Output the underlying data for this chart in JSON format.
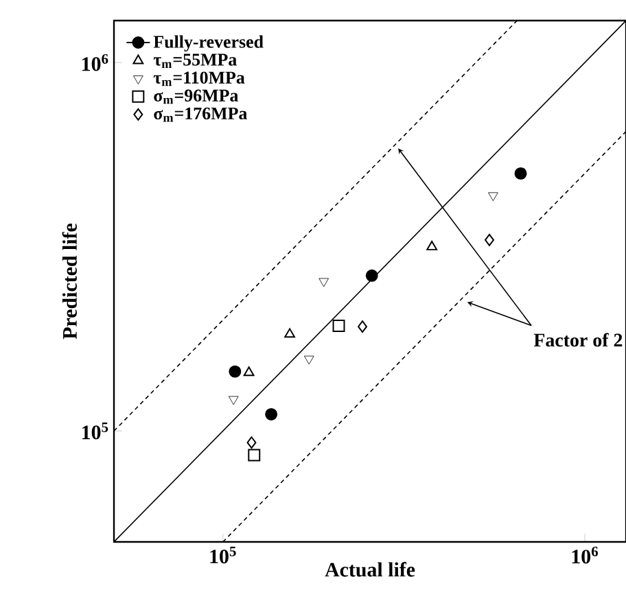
{
  "chart_data": {
    "type": "scatter",
    "xlabel": "Actual life",
    "ylabel": "Predicted life",
    "log": "xy",
    "xlim": [
      50000,
      1300000
    ],
    "ylim": [
      50000,
      1300000
    ],
    "xticks": [
      {
        "value": 100000,
        "label": "10$^{5}$"
      },
      {
        "value": 1000000,
        "label": "10$^{6}$"
      }
    ],
    "yticks": [
      {
        "value": 100000,
        "label": "10$^{5}$"
      },
      {
        "value": 1000000,
        "label": "10$^{6}$"
      }
    ],
    "legend": "top left",
    "grid": false,
    "annotations": [
      "Factor of 2"
    ],
    "series": [
      {
        "name": "Fully-reversed",
        "color": "#000000",
        "marker": "circle",
        "x": [
          108000,
          136000,
          258000,
          665000
        ],
        "values": [
          145000,
          111000,
          264000,
          500000
        ]
      },
      {
        "name": "τ$_{m}$=55MPa",
        "color": "#000000",
        "marker": "triangle",
        "x": [
          118000,
          153000,
          378000
        ],
        "values": [
          144000,
          183000,
          316000
        ]
      },
      {
        "name": "τ$_{m}$=110MPa",
        "color": "#000000",
        "marker": "triangle-down",
        "x": [
          107000,
          173000,
          190000,
          558000
        ],
        "values": [
          122000,
          157000,
          255000,
          436000
        ]
      },
      {
        "name": "σ$_{m}$=96MPa",
        "color": "#000000",
        "marker": "square",
        "x": [
          122000,
          209000
        ],
        "values": [
          86000,
          193000
        ]
      },
      {
        "name": "σ$_{m}$=176MPa",
        "color": "#000000",
        "marker": "diamond",
        "x": [
          120000,
          243000,
          545000
        ],
        "values": [
          93000,
          192000,
          330000
        ]
      },
      {
        "type": "line",
        "color": "#000000",
        "line_style": "solid",
        "marker": "none",
        "x": [
          50000,
          1300000
        ],
        "values": [
          50000,
          1300000
        ]
      },
      {
        "type": "line",
        "color": "#000000",
        "line_style": "dashed",
        "marker": "none",
        "x": [
          50000,
          650000
        ],
        "values": [
          100000,
          1300000
        ]
      },
      {
        "type": "line",
        "color": "#000000",
        "line_style": "dashed",
        "marker": "none",
        "x": [
          100000,
          1300000
        ],
        "values": [
          50000,
          650000
        ]
      }
    ]
  }
}
